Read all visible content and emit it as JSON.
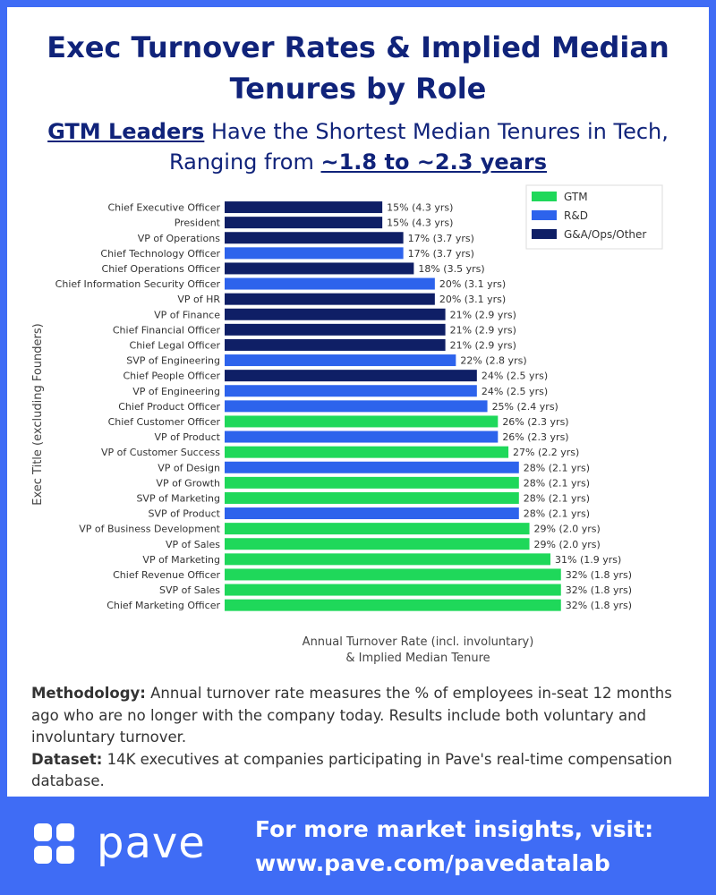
{
  "header": {
    "title": "Exec Turnover Rates & Implied Median Tenures by Role",
    "subtitle_strong": "GTM Leaders",
    "subtitle_mid": " Have the Shortest Median Tenures in Tech, Ranging from ",
    "subtitle_range": "~1.8 to ~2.3 years"
  },
  "chart_data": {
    "type": "bar",
    "orientation": "horizontal",
    "ylabel": "Exec Title (excluding Founders)",
    "xlabel_line1": "Annual Turnover Rate (incl. involuntary)",
    "xlabel_line2": "& Implied Median Tenure",
    "legend_position": "top-right",
    "grid": false,
    "xlim": [
      0,
      35
    ],
    "colors": {
      "GTM": "#1fd85a",
      "R&D": "#2d63ec",
      "G&A/Ops/Other": "#0f1f66"
    },
    "legend": [
      "GTM",
      "R&D",
      "G&A/Ops/Other"
    ],
    "bars": [
      {
        "label": "Chief Executive Officer",
        "value": 15,
        "text": "15% (4.3 yrs)",
        "group": "G&A/Ops/Other"
      },
      {
        "label": "President",
        "value": 15,
        "text": "15% (4.3 yrs)",
        "group": "G&A/Ops/Other"
      },
      {
        "label": "VP of Operations",
        "value": 17,
        "text": "17% (3.7 yrs)",
        "group": "G&A/Ops/Other"
      },
      {
        "label": "Chief Technology Officer",
        "value": 17,
        "text": "17% (3.7 yrs)",
        "group": "R&D"
      },
      {
        "label": "Chief Operations Officer",
        "value": 18,
        "text": "18% (3.5 yrs)",
        "group": "G&A/Ops/Other"
      },
      {
        "label": "Chief Information Security Officer",
        "value": 20,
        "text": "20% (3.1 yrs)",
        "group": "R&D"
      },
      {
        "label": "VP of HR",
        "value": 20,
        "text": "20% (3.1 yrs)",
        "group": "G&A/Ops/Other"
      },
      {
        "label": "VP of Finance",
        "value": 21,
        "text": "21% (2.9 yrs)",
        "group": "G&A/Ops/Other"
      },
      {
        "label": "Chief Financial Officer",
        "value": 21,
        "text": "21% (2.9 yrs)",
        "group": "G&A/Ops/Other"
      },
      {
        "label": "Chief Legal Officer",
        "value": 21,
        "text": "21% (2.9 yrs)",
        "group": "G&A/Ops/Other"
      },
      {
        "label": "SVP of Engineering",
        "value": 22,
        "text": "22% (2.8 yrs)",
        "group": "R&D"
      },
      {
        "label": "Chief People Officer",
        "value": 24,
        "text": "24% (2.5 yrs)",
        "group": "G&A/Ops/Other"
      },
      {
        "label": "VP of Engineering",
        "value": 24,
        "text": "24% (2.5 yrs)",
        "group": "R&D"
      },
      {
        "label": "Chief Product Officer",
        "value": 25,
        "text": "25% (2.4 yrs)",
        "group": "R&D"
      },
      {
        "label": "Chief Customer Officer",
        "value": 26,
        "text": "26% (2.3 yrs)",
        "group": "GTM"
      },
      {
        "label": "VP of Product",
        "value": 26,
        "text": "26% (2.3 yrs)",
        "group": "R&D"
      },
      {
        "label": "VP of Customer Success",
        "value": 27,
        "text": "27% (2.2 yrs)",
        "group": "GTM"
      },
      {
        "label": "VP of Design",
        "value": 28,
        "text": "28% (2.1 yrs)",
        "group": "R&D"
      },
      {
        "label": "VP of Growth",
        "value": 28,
        "text": "28% (2.1 yrs)",
        "group": "GTM"
      },
      {
        "label": "SVP of Marketing",
        "value": 28,
        "text": "28% (2.1 yrs)",
        "group": "GTM"
      },
      {
        "label": "SVP of Product",
        "value": 28,
        "text": "28% (2.1 yrs)",
        "group": "R&D"
      },
      {
        "label": "VP of Business Development",
        "value": 29,
        "text": "29% (2.0 yrs)",
        "group": "GTM"
      },
      {
        "label": "VP of Sales",
        "value": 29,
        "text": "29% (2.0 yrs)",
        "group": "GTM"
      },
      {
        "label": "VP of Marketing",
        "value": 31,
        "text": "31% (1.9 yrs)",
        "group": "GTM"
      },
      {
        "label": "Chief Revenue Officer",
        "value": 32,
        "text": "32% (1.8 yrs)",
        "group": "GTM"
      },
      {
        "label": "SVP of Sales",
        "value": 32,
        "text": "32% (1.8 yrs)",
        "group": "GTM"
      },
      {
        "label": "Chief Marketing Officer",
        "value": 32,
        "text": "32% (1.8 yrs)",
        "group": "GTM"
      }
    ]
  },
  "methodology": {
    "label": "Methodology:",
    "text": " Annual turnover rate measures the % of employees in-seat 12 months ago who are no longer with the company today. Results include both voluntary and involuntary turnover.",
    "dataset_label": "Dataset:",
    "dataset_text": " 14K executives at companies participating in Pave's real-time compensation database."
  },
  "footer": {
    "logo_text": "pave",
    "cta_line1": "For more market insights, visit:",
    "cta_line2": "www.pave.com/pavedatalab"
  }
}
